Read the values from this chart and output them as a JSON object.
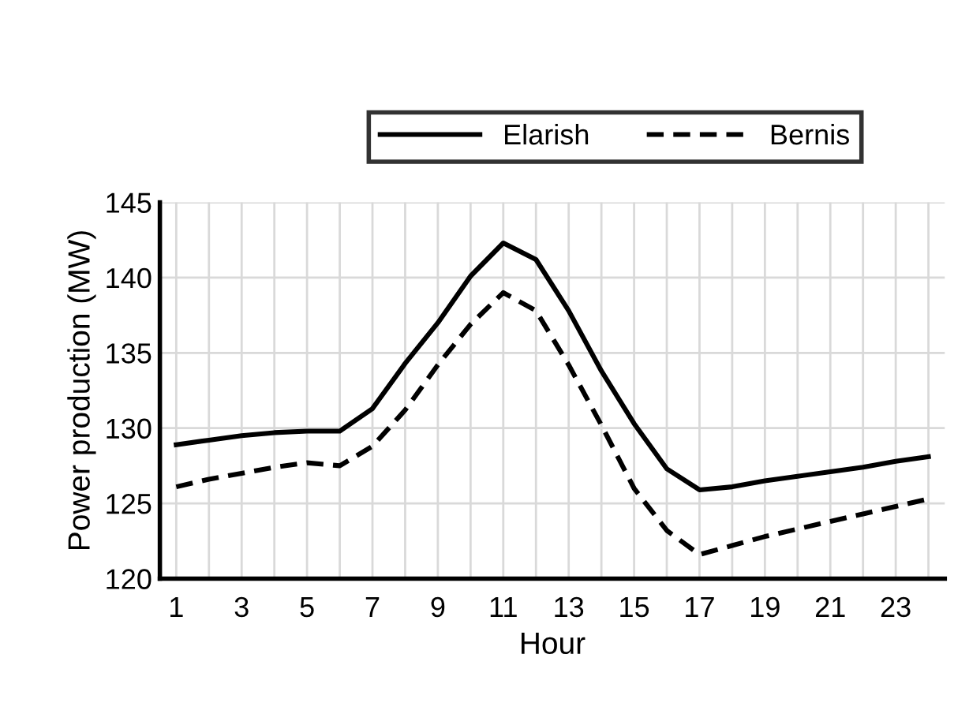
{
  "chart_data": {
    "type": "line",
    "xlabel": "Hour",
    "ylabel": "Power production (MW)",
    "categories": [
      "1",
      null,
      "3",
      null,
      "5",
      null,
      "7",
      null,
      "9",
      null,
      "11",
      null,
      "13",
      null,
      "15",
      null,
      "17",
      null,
      "19",
      null,
      "21",
      null,
      "23",
      null
    ],
    "series": [
      {
        "name": "Elarish",
        "color": "#000000",
        "line_style": "solid",
        "values": [
          128.9,
          129.2,
          129.5,
          129.7,
          129.8,
          129.8,
          131.3,
          134.3,
          137.0,
          140.1,
          142.3,
          141.2,
          137.8,
          133.8,
          130.3,
          127.3,
          125.9,
          126.1,
          126.5,
          126.8,
          127.1,
          127.4,
          127.8,
          128.1
        ]
      },
      {
        "name": "Bernis",
        "color": "#000000",
        "line_style": "dashed",
        "values": [
          126.1,
          126.6,
          127.0,
          127.4,
          127.7,
          127.5,
          128.8,
          131.2,
          134.2,
          136.9,
          139.0,
          137.8,
          134.2,
          130.2,
          126.0,
          123.2,
          121.6,
          122.2,
          122.8,
          123.3,
          123.8,
          124.3,
          124.8,
          125.3
        ]
      }
    ],
    "ylim": [
      120,
      145
    ],
    "yticks": [
      120,
      125,
      130,
      135,
      140,
      145
    ],
    "grid": true,
    "legend": "top",
    "marker": "none"
  }
}
